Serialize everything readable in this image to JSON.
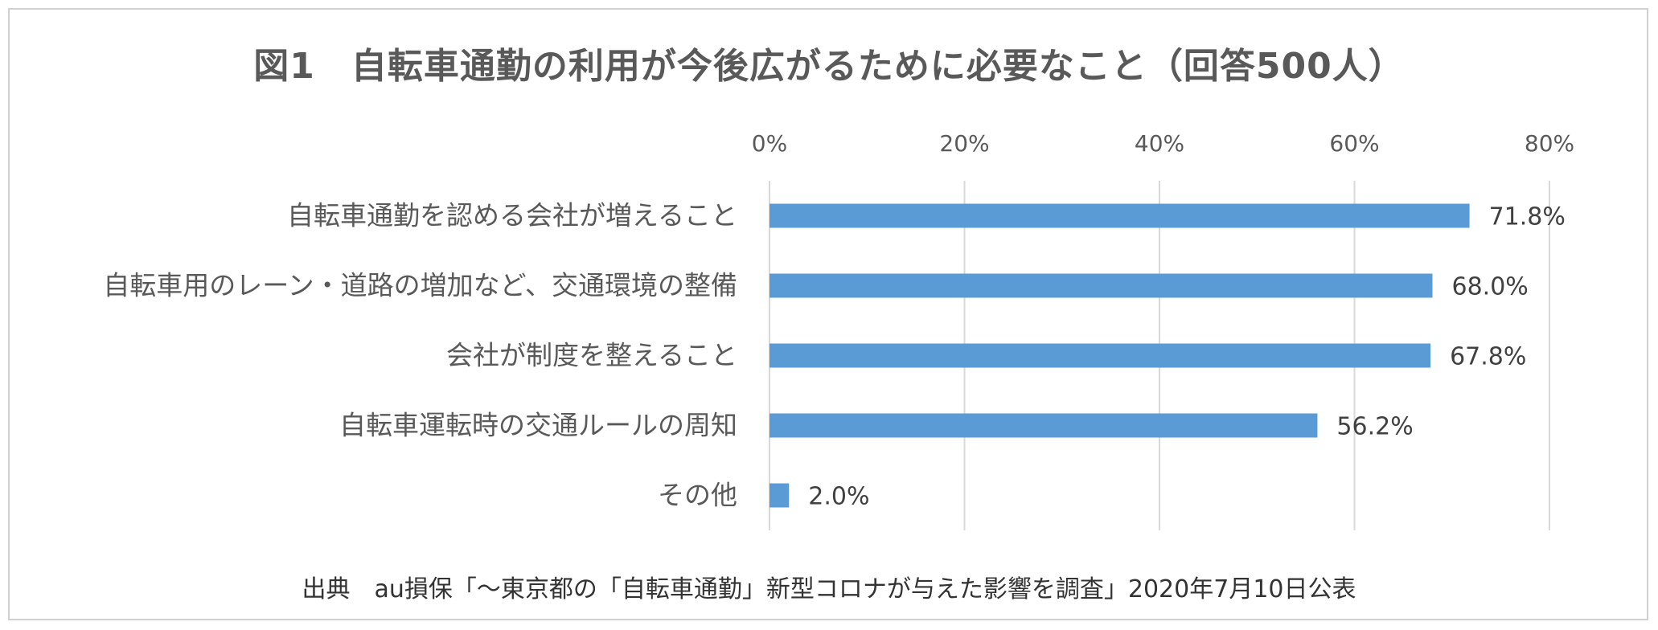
{
  "chart_data": {
    "type": "bar",
    "orientation": "horizontal",
    "title": "図1　自転車通勤の利用が今後広がるために必要なこと（回答500人）",
    "categories": [
      "自転車通勤を認める会社が増えること",
      "自転車用のレーン・道路の増加など、交通環境の整備",
      "会社が制度を整えること",
      "自転車運転時の交通ルールの周知",
      "その他"
    ],
    "values": [
      71.8,
      68.0,
      67.8,
      56.2,
      2.0
    ],
    "value_labels": [
      "71.8%",
      "68.0%",
      "67.8%",
      "56.2%",
      "2.0%"
    ],
    "xlim": [
      0,
      80
    ],
    "ticks": [
      0,
      20,
      40,
      60,
      80
    ],
    "tick_labels": [
      "0%",
      "20%",
      "40%",
      "60%",
      "80%"
    ],
    "axis_position": "top",
    "grid": true,
    "bar_color": "#5b9bd5",
    "source": "出典　au損保「～東京都の「自転車通勤」新型コロナが与えた影響を調査」2020年7月10日公表"
  }
}
